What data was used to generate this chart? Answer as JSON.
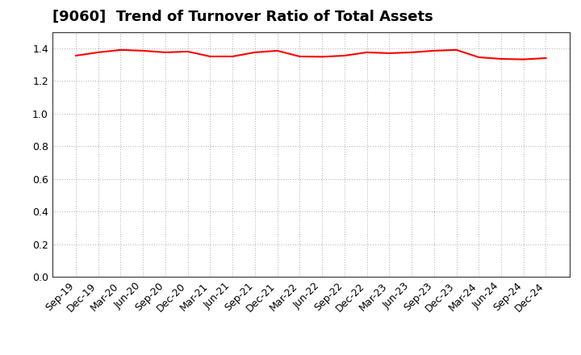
{
  "title": "[9060]  Trend of Turnover Ratio of Total Assets",
  "x_labels": [
    "Sep-19",
    "Dec-19",
    "Mar-20",
    "Jun-20",
    "Sep-20",
    "Dec-20",
    "Mar-21",
    "Jun-21",
    "Sep-21",
    "Dec-21",
    "Mar-22",
    "Jun-22",
    "Sep-22",
    "Dec-22",
    "Mar-23",
    "Jun-23",
    "Sep-23",
    "Dec-23",
    "Mar-24",
    "Jun-24",
    "Sep-24",
    "Dec-24"
  ],
  "values": [
    1.355,
    1.375,
    1.39,
    1.385,
    1.375,
    1.38,
    1.35,
    1.35,
    1.375,
    1.385,
    1.35,
    1.348,
    1.355,
    1.375,
    1.37,
    1.375,
    1.385,
    1.39,
    1.345,
    1.335,
    1.332,
    1.34
  ],
  "line_color": "#ff0000",
  "line_width": 1.5,
  "ylim": [
    0.0,
    1.5
  ],
  "yticks": [
    0.0,
    0.2,
    0.4,
    0.6,
    0.8,
    1.0,
    1.2,
    1.4
  ],
  "background_color": "#ffffff",
  "grid_color": "#aaaaaa",
  "title_fontsize": 13,
  "tick_fontsize": 9
}
